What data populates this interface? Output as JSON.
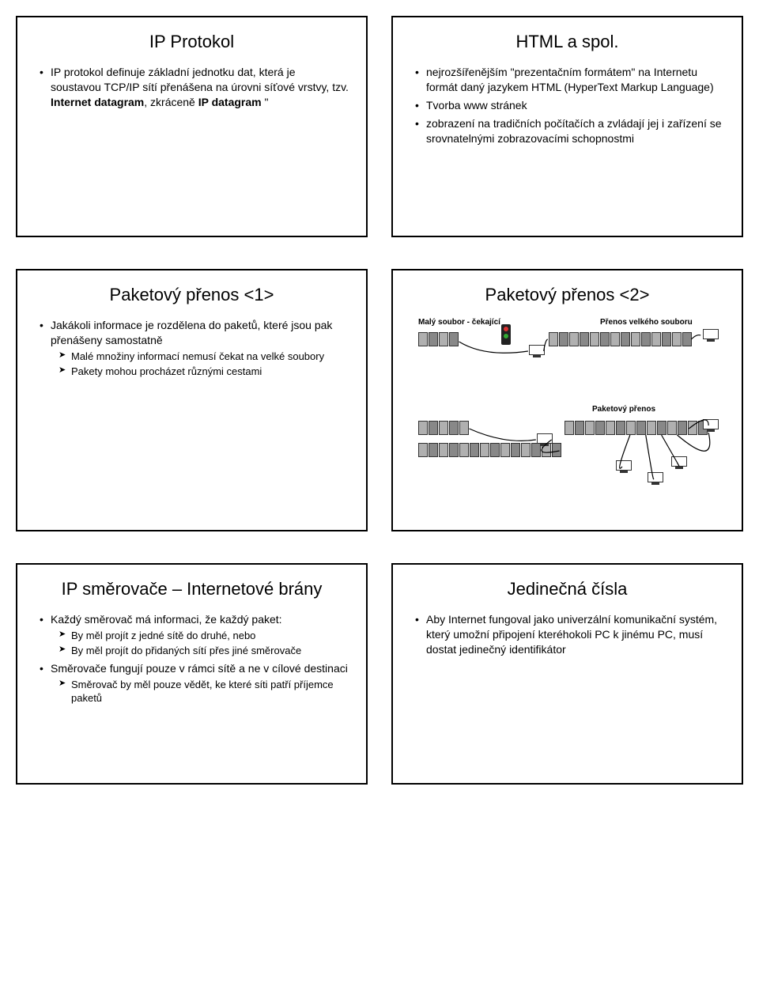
{
  "slides": {
    "s1": {
      "title": "IP Protokol",
      "b1_pre": "IP protokol definuje základní jednotku dat, která je soustavou TCP/IP sítí přenášena na úrovni síťové vrstvy, tzv. ",
      "b1_bold1": "Internet datagram",
      "b1_mid": ", zkráceně ",
      "b1_bold2": "IP datagram",
      "b1_post": " \""
    },
    "s2": {
      "title": "HTML a spol.",
      "b1": "nejrozšířenějším \"prezentačním formátem\" na Internetu formát daný jazykem HTML (HyperText Markup Language)",
      "b2": "Tvorba www stránek",
      "b3": "zobrazení na tradičních počítačích a zvládají jej i zařízení se srovnatelnými zobrazovacími schopnostmi"
    },
    "s3": {
      "title": "Paketový přenos <1>",
      "b1": "Jakákoli informace je rozdělena do paketů, které jsou pak přenášeny samostatně",
      "s1": "Malé množiny informací nemusí čekat na velké soubory",
      "s2": "Pakety mohou procházet různými cestami"
    },
    "s4": {
      "title": "Paketový přenos <2>",
      "label_small": "Malý soubor - čekající",
      "label_big": "Přenos velkého souboru",
      "label_packet": "Paketový přenos",
      "packets_small": [
        "c0",
        "c1",
        "c0",
        "c1"
      ],
      "packets_big": [
        "c0",
        "c1",
        "c0",
        "c1",
        "c0",
        "c1",
        "c0",
        "c1",
        "c0",
        "c1",
        "c0",
        "c1",
        "c0",
        "c1"
      ],
      "packets_row1": [
        "c0",
        "c1",
        "c0",
        "c1",
        "c0"
      ],
      "packets_row2": [
        "c0",
        "c1",
        "c0",
        "c1",
        "c0",
        "c1",
        "c0",
        "c1",
        "c0",
        "c1",
        "c0",
        "c1",
        "c0",
        "c1"
      ],
      "colors": {
        "c0": "#b0b0b0",
        "c1": "#888888",
        "border": "#333333",
        "wire": "#000000"
      }
    },
    "s5": {
      "title": "IP směrovače – Internetové brány",
      "b1": "Každý směrovač má informaci, že každý paket:",
      "s1": "By měl projít z jedné sítě do druhé, nebo",
      "s2": "By měl projít do přidaných sítí přes jiné směrovače",
      "b2": "Směrovače fungují pouze v rámci sítě a ne v cílové destinaci",
      "s3": "Směrovač by měl pouze vědět, ke které síti patří příjemce paketů"
    },
    "s6": {
      "title": "Jedinečná čísla",
      "b1": "Aby Internet fungoval jako univerzální komunikační systém, který umožní připojení kteréhokoli PC k jinému PC, musí dostat jedinečný identifikátor"
    }
  }
}
